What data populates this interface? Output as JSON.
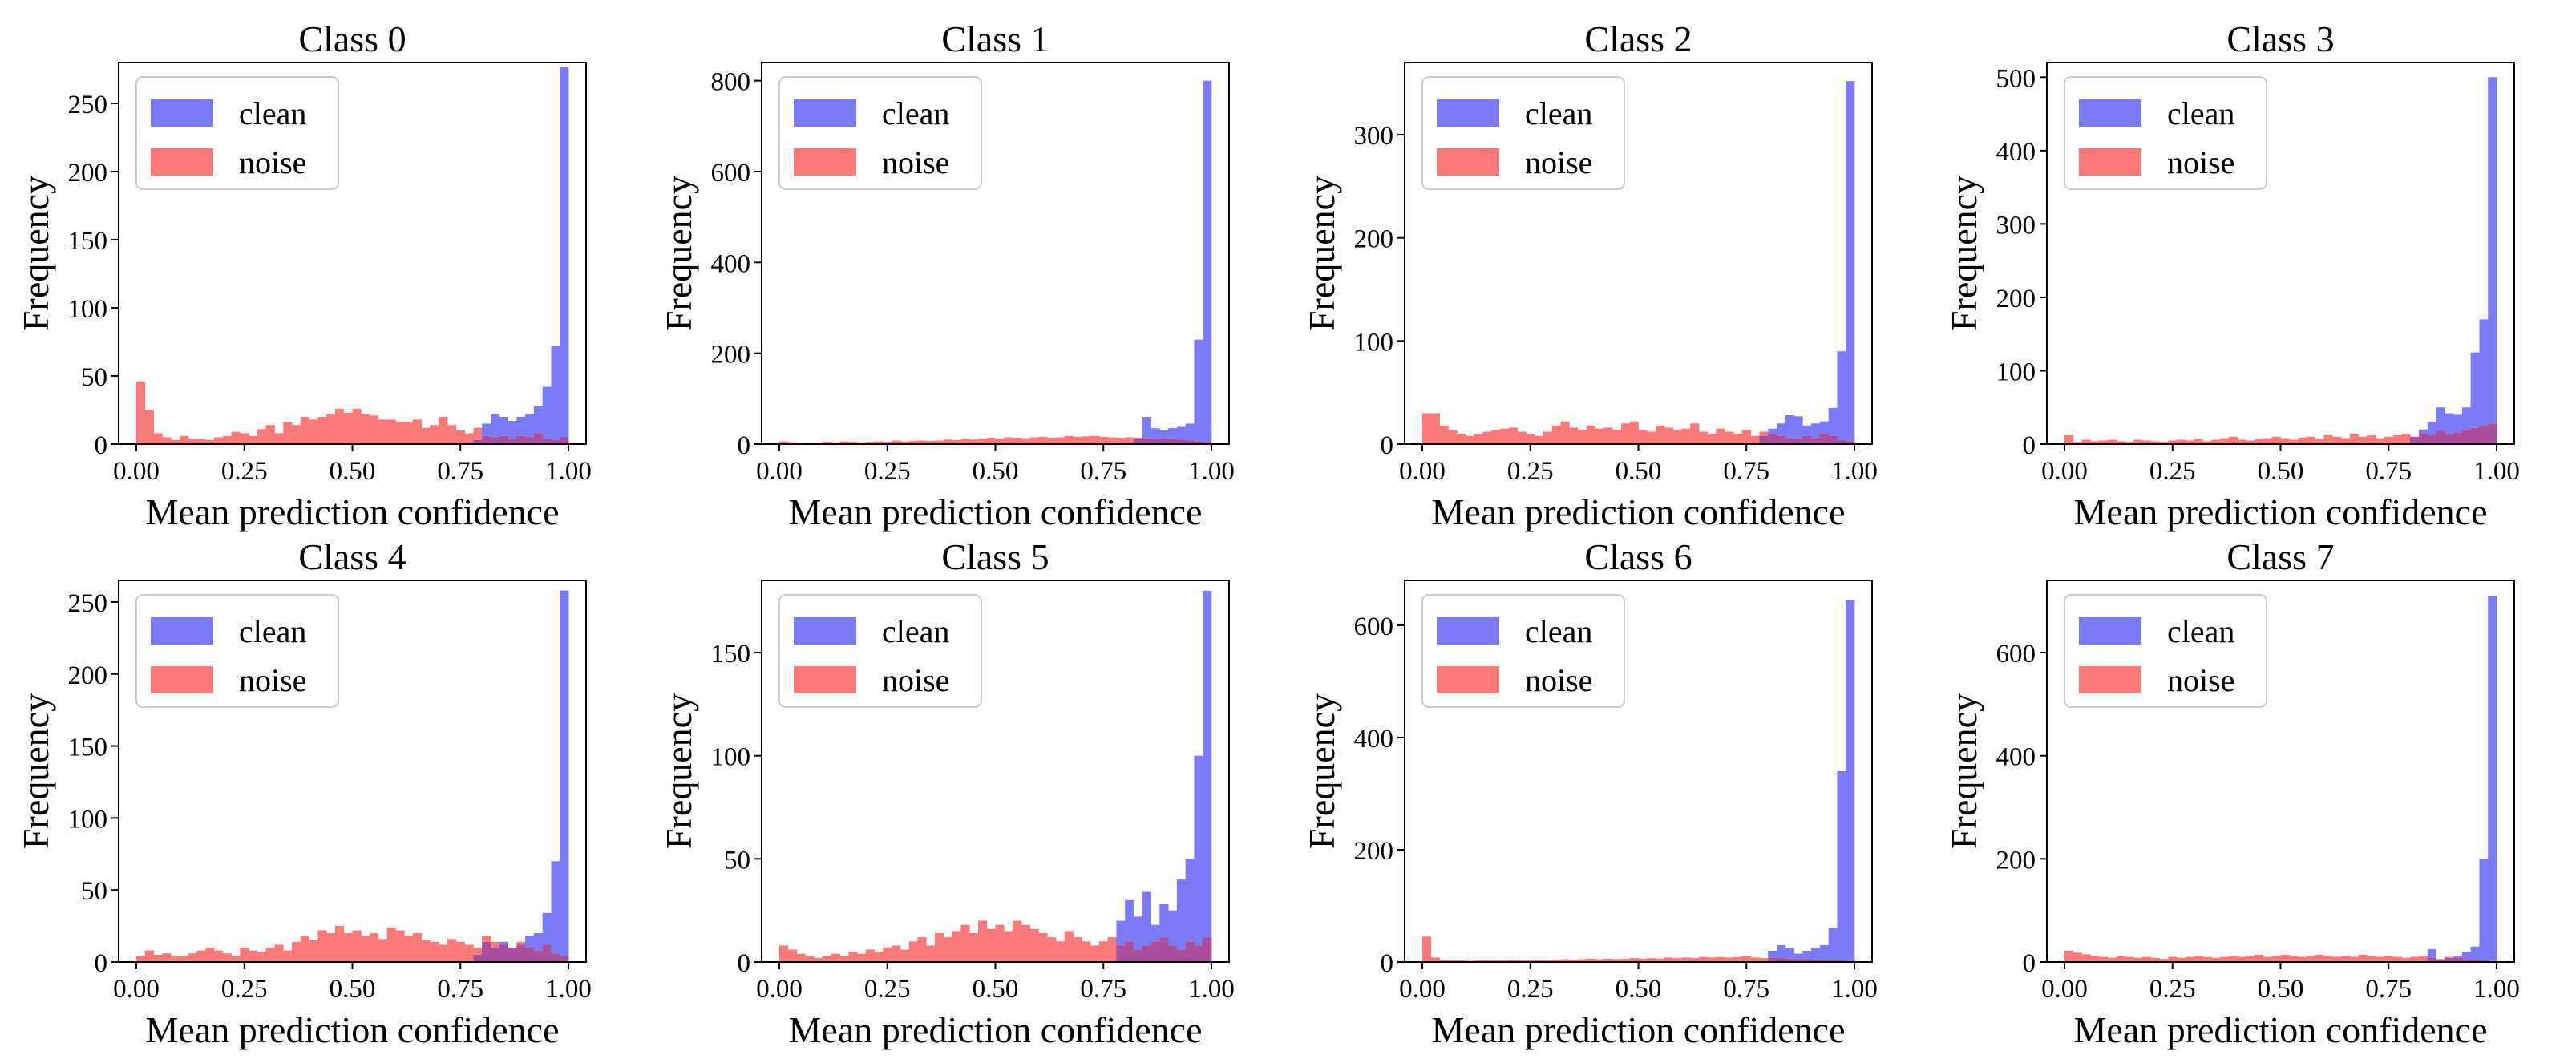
{
  "figure": {
    "legend": [
      "clean",
      "noise"
    ],
    "colors": {
      "clean": "#7b7bf6",
      "noise": "#f87a7a",
      "overlap": "#a84e9a"
    }
  },
  "chart_data": [
    {
      "type": "histogram",
      "title": "Class 0",
      "xlabel": "Mean prediction confidence",
      "ylabel": "Frequency",
      "xlim": [
        0,
        1
      ],
      "ylim": [
        0,
        280
      ],
      "xticks": [
        "0.00",
        "0.25",
        "0.50",
        "0.75",
        "1.00"
      ],
      "yticks": [
        0,
        50,
        100,
        150,
        200,
        250
      ],
      "legend_position": "upper-left",
      "bins": 50,
      "series": [
        {
          "name": "clean",
          "values": [
            0,
            0,
            0,
            0,
            0,
            0,
            0,
            0,
            0,
            0,
            0,
            0,
            0,
            0,
            0,
            0,
            0,
            0,
            0,
            0,
            0,
            0,
            0,
            0,
            0,
            0,
            0,
            0,
            0,
            0,
            0,
            0,
            0,
            0,
            0,
            0,
            0,
            0,
            0,
            3,
            15,
            22,
            20,
            17,
            20,
            22,
            28,
            42,
            72,
            277
          ]
        },
        {
          "name": "noise",
          "values": [
            46,
            25,
            8,
            5,
            3,
            6,
            4,
            4,
            3,
            5,
            6,
            9,
            8,
            6,
            11,
            14,
            8,
            16,
            14,
            20,
            18,
            20,
            22,
            26,
            23,
            26,
            22,
            21,
            18,
            18,
            16,
            16,
            18,
            12,
            14,
            20,
            14,
            10,
            8,
            12,
            6,
            5,
            6,
            4,
            6,
            5,
            8,
            4,
            3,
            5
          ]
        }
      ]
    },
    {
      "type": "histogram",
      "title": "Class 1",
      "xlabel": "Mean prediction confidence",
      "ylabel": "Frequency",
      "xlim": [
        0,
        1
      ],
      "ylim": [
        0,
        840
      ],
      "xticks": [
        "0.00",
        "0.25",
        "0.50",
        "0.75",
        "1.00"
      ],
      "yticks": [
        0,
        200,
        400,
        600,
        800
      ],
      "legend_position": "upper-left",
      "bins": 50,
      "series": [
        {
          "name": "clean",
          "values": [
            0,
            0,
            0,
            0,
            0,
            0,
            0,
            0,
            0,
            0,
            0,
            0,
            0,
            0,
            0,
            0,
            0,
            0,
            0,
            0,
            0,
            0,
            0,
            0,
            0,
            0,
            0,
            0,
            0,
            0,
            0,
            0,
            0,
            0,
            0,
            0,
            0,
            0,
            0,
            0,
            0,
            12,
            60,
            35,
            30,
            35,
            38,
            45,
            230,
            800
          ]
        },
        {
          "name": "noise",
          "values": [
            6,
            4,
            3,
            2,
            3,
            5,
            4,
            6,
            5,
            4,
            5,
            6,
            5,
            8,
            6,
            7,
            8,
            7,
            8,
            10,
            9,
            12,
            10,
            12,
            14,
            12,
            15,
            14,
            13,
            15,
            16,
            14,
            15,
            18,
            16,
            17,
            18,
            16,
            15,
            14,
            15,
            14,
            13,
            12,
            11,
            12,
            10,
            8,
            6,
            5
          ]
        }
      ]
    },
    {
      "type": "histogram",
      "title": "Class 2",
      "xlabel": "Mean prediction confidence",
      "ylabel": "Frequency",
      "xlim": [
        0,
        1
      ],
      "ylim": [
        0,
        370
      ],
      "xticks": [
        "0.00",
        "0.25",
        "0.50",
        "0.75",
        "1.00"
      ],
      "yticks": [
        0,
        100,
        200,
        300
      ],
      "legend_position": "upper-left",
      "bins": 50,
      "series": [
        {
          "name": "clean",
          "values": [
            0,
            0,
            0,
            0,
            0,
            0,
            0,
            0,
            0,
            0,
            0,
            0,
            0,
            0,
            0,
            0,
            0,
            0,
            0,
            0,
            0,
            0,
            0,
            0,
            0,
            0,
            0,
            0,
            0,
            0,
            0,
            0,
            0,
            0,
            0,
            0,
            0,
            0,
            0,
            8,
            15,
            20,
            28,
            27,
            18,
            20,
            22,
            35,
            90,
            352
          ]
        },
        {
          "name": "noise",
          "values": [
            30,
            30,
            18,
            14,
            10,
            8,
            10,
            12,
            14,
            15,
            16,
            12,
            10,
            8,
            12,
            18,
            22,
            16,
            14,
            18,
            15,
            16,
            14,
            20,
            22,
            14,
            12,
            18,
            16,
            14,
            15,
            20,
            12,
            10,
            15,
            12,
            10,
            14,
            8,
            12,
            10,
            8,
            6,
            5,
            8,
            6,
            10,
            8,
            4,
            3
          ]
        }
      ]
    },
    {
      "type": "histogram",
      "title": "Class 3",
      "xlabel": "Mean prediction confidence",
      "ylabel": "Frequency",
      "xlim": [
        0,
        1
      ],
      "ylim": [
        0,
        520
      ],
      "xticks": [
        "0.00",
        "0.25",
        "0.50",
        "0.75",
        "1.00"
      ],
      "yticks": [
        0,
        100,
        200,
        300,
        400,
        500
      ],
      "legend_position": "upper-left",
      "bins": 50,
      "series": [
        {
          "name": "clean",
          "values": [
            0,
            0,
            0,
            0,
            0,
            0,
            0,
            0,
            0,
            0,
            0,
            0,
            0,
            0,
            0,
            0,
            0,
            0,
            0,
            0,
            0,
            0,
            0,
            0,
            0,
            0,
            0,
            0,
            0,
            0,
            0,
            0,
            0,
            0,
            0,
            0,
            0,
            0,
            0,
            0,
            10,
            20,
            30,
            50,
            42,
            40,
            50,
            125,
            170,
            500
          ]
        },
        {
          "name": "noise",
          "values": [
            12,
            3,
            6,
            4,
            5,
            6,
            4,
            3,
            6,
            5,
            4,
            3,
            5,
            6,
            5,
            7,
            4,
            6,
            8,
            10,
            6,
            5,
            7,
            8,
            10,
            8,
            6,
            9,
            10,
            7,
            12,
            10,
            8,
            14,
            10,
            12,
            8,
            10,
            12,
            14,
            10,
            15,
            12,
            18,
            14,
            16,
            20,
            22,
            25,
            28
          ]
        }
      ]
    },
    {
      "type": "histogram",
      "title": "Class 4",
      "xlabel": "Mean prediction confidence",
      "ylabel": "Frequency",
      "xlim": [
        0,
        1
      ],
      "ylim": [
        0,
        265
      ],
      "xticks": [
        "0.00",
        "0.25",
        "0.50",
        "0.75",
        "1.00"
      ],
      "yticks": [
        0,
        50,
        100,
        150,
        200,
        250
      ],
      "legend_position": "upper-left",
      "bins": 50,
      "series": [
        {
          "name": "clean",
          "values": [
            0,
            0,
            0,
            0,
            0,
            0,
            0,
            0,
            0,
            0,
            0,
            0,
            0,
            0,
            0,
            0,
            0,
            0,
            0,
            0,
            0,
            0,
            0,
            0,
            0,
            0,
            0,
            0,
            0,
            0,
            0,
            0,
            0,
            0,
            0,
            0,
            0,
            0,
            0,
            5,
            14,
            10,
            14,
            10,
            12,
            18,
            20,
            34,
            70,
            258
          ]
        },
        {
          "name": "noise",
          "values": [
            4,
            8,
            5,
            6,
            4,
            4,
            6,
            8,
            10,
            8,
            6,
            4,
            10,
            8,
            7,
            10,
            12,
            8,
            14,
            18,
            15,
            22,
            20,
            25,
            20,
            22,
            18,
            20,
            16,
            24,
            22,
            18,
            20,
            15,
            14,
            12,
            16,
            14,
            12,
            10,
            18,
            14,
            12,
            10,
            14,
            10,
            8,
            12,
            6,
            4
          ]
        }
      ]
    },
    {
      "type": "histogram",
      "title": "Class 5",
      "xlabel": "Mean prediction confidence",
      "ylabel": "Frequency",
      "xlim": [
        0,
        1
      ],
      "ylim": [
        0,
        185
      ],
      "xticks": [
        "0.00",
        "0.25",
        "0.50",
        "0.75",
        "1.00"
      ],
      "yticks": [
        0,
        50,
        100,
        150
      ],
      "legend_position": "upper-left",
      "bins": 50,
      "series": [
        {
          "name": "clean",
          "values": [
            0,
            0,
            0,
            0,
            0,
            0,
            0,
            0,
            0,
            0,
            0,
            0,
            0,
            0,
            0,
            0,
            0,
            0,
            0,
            0,
            0,
            0,
            0,
            0,
            0,
            0,
            0,
            0,
            0,
            0,
            0,
            0,
            0,
            0,
            0,
            0,
            0,
            0,
            0,
            20,
            30,
            22,
            34,
            18,
            28,
            25,
            40,
            50,
            100,
            180
          ]
        },
        {
          "name": "noise",
          "values": [
            8,
            6,
            4,
            3,
            2,
            3,
            4,
            3,
            5,
            4,
            6,
            5,
            7,
            8,
            6,
            10,
            12,
            8,
            14,
            12,
            15,
            18,
            14,
            20,
            16,
            18,
            15,
            20,
            18,
            16,
            14,
            12,
            10,
            15,
            12,
            10,
            8,
            10,
            12,
            8,
            10,
            6,
            8,
            10,
            12,
            8,
            6,
            10,
            8,
            12
          ]
        }
      ]
    },
    {
      "type": "histogram",
      "title": "Class 6",
      "xlabel": "Mean prediction confidence",
      "ylabel": "Frequency",
      "xlim": [
        0,
        1
      ],
      "ylim": [
        0,
        680
      ],
      "xticks": [
        "0.00",
        "0.25",
        "0.50",
        "0.75",
        "1.00"
      ],
      "yticks": [
        0,
        200,
        400,
        600
      ],
      "legend_position": "upper-left",
      "bins": 50,
      "series": [
        {
          "name": "clean",
          "values": [
            0,
            0,
            0,
            0,
            0,
            0,
            0,
            0,
            0,
            0,
            0,
            0,
            0,
            0,
            0,
            0,
            0,
            0,
            0,
            0,
            0,
            0,
            0,
            0,
            0,
            0,
            0,
            0,
            0,
            0,
            0,
            0,
            0,
            0,
            0,
            0,
            0,
            0,
            0,
            0,
            20,
            30,
            25,
            15,
            20,
            25,
            30,
            60,
            340,
            645
          ]
        },
        {
          "name": "noise",
          "values": [
            45,
            8,
            4,
            3,
            3,
            2,
            3,
            4,
            3,
            3,
            4,
            3,
            3,
            4,
            3,
            4,
            5,
            4,
            5,
            6,
            5,
            6,
            5,
            6,
            7,
            6,
            7,
            6,
            8,
            7,
            8,
            7,
            9,
            8,
            9,
            8,
            9,
            10,
            8,
            7,
            8,
            7,
            6,
            5,
            5,
            4,
            3,
            3,
            3,
            2
          ]
        }
      ]
    },
    {
      "type": "histogram",
      "title": "Class 7",
      "xlabel": "Mean prediction confidence",
      "ylabel": "Frequency",
      "xlim": [
        0,
        1
      ],
      "ylim": [
        0,
        740
      ],
      "xticks": [
        "0.00",
        "0.25",
        "0.50",
        "0.75",
        "1.00"
      ],
      "yticks": [
        0,
        200,
        400,
        600
      ],
      "legend_position": "upper-left",
      "bins": 50,
      "series": [
        {
          "name": "clean",
          "values": [
            0,
            0,
            0,
            0,
            0,
            0,
            0,
            0,
            0,
            0,
            0,
            0,
            0,
            0,
            0,
            0,
            0,
            0,
            0,
            0,
            0,
            0,
            0,
            0,
            0,
            0,
            0,
            0,
            0,
            0,
            0,
            0,
            0,
            0,
            0,
            0,
            0,
            0,
            0,
            0,
            0,
            0,
            25,
            5,
            8,
            12,
            20,
            30,
            200,
            710
          ]
        },
        {
          "name": "noise",
          "values": [
            22,
            18,
            15,
            12,
            10,
            8,
            12,
            10,
            8,
            10,
            8,
            6,
            10,
            8,
            10,
            12,
            10,
            8,
            10,
            12,
            10,
            12,
            14,
            10,
            12,
            14,
            12,
            10,
            12,
            14,
            12,
            10,
            12,
            10,
            14,
            12,
            10,
            12,
            10,
            8,
            10,
            12,
            8,
            6,
            10,
            8,
            6,
            4,
            3,
            2
          ]
        }
      ]
    }
  ]
}
